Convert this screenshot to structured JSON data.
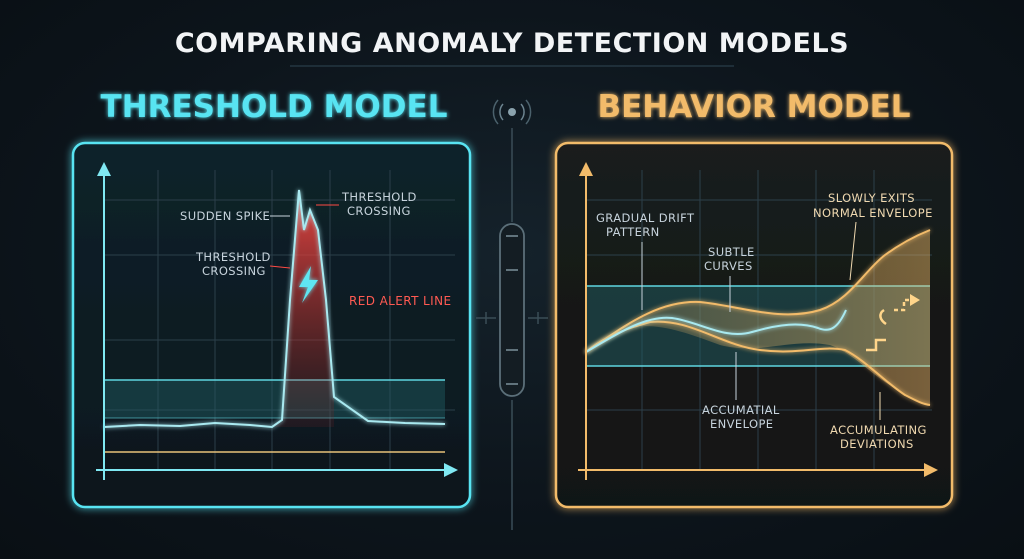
{
  "title": "COMPARING ANOMALY DETECTION MODELS",
  "threshold_panel": {
    "heading": "THRESHOLD MODEL",
    "labels": {
      "sudden_spike": "SUDDEN SPIKE",
      "threshold_crossing_right": [
        "THRESHOLD",
        "CROSSING"
      ],
      "threshold_crossing_left": [
        "THRESHOLD",
        "CROSSING"
      ],
      "red_alert_line": "RED ALERT LINE"
    },
    "colors": {
      "accent": "#58e4f2",
      "alert": "#ff4a44",
      "baseline": "#e8c27a"
    },
    "icon": "lightning-icon"
  },
  "behavior_panel": {
    "heading": "BEHAVIOR MODEL",
    "labels": {
      "gradual_drift": [
        "GRADUAL DRIFT",
        "PATTERN"
      ],
      "subtle_curves": [
        "SUBTLE",
        "CURVES"
      ],
      "slowly_exits": [
        "SLOWLY EXITS",
        "NORMAL ENVELOPE"
      ],
      "accumatial_envelope": [
        "ACCUMATIAL",
        "ENVELOPE"
      ],
      "accumulating_deviations": [
        "ACCUMULATING",
        "DEVIATIONS"
      ]
    },
    "colors": {
      "accent": "#f2bb6a",
      "band": "#5fd6e0"
    },
    "icon": "stair-trend-icon"
  },
  "divider": {
    "icon": "signal-icon"
  }
}
